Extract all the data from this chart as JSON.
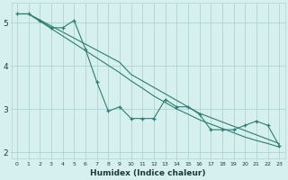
{
  "xlabel": "Humidex (Indice chaleur)",
  "bg_color": "#d6f0f0",
  "grid_color": "#aed4d4",
  "line_color": "#2e7d72",
  "xlim": [
    -0.5,
    23.5
  ],
  "ylim": [
    1.85,
    5.45
  ],
  "yticks": [
    2,
    3,
    4,
    5
  ],
  "xticks": [
    0,
    1,
    2,
    3,
    4,
    5,
    6,
    7,
    8,
    9,
    10,
    11,
    12,
    13,
    14,
    15,
    16,
    17,
    18,
    19,
    20,
    21,
    22,
    23
  ],
  "series": [
    {
      "x": [
        0,
        1,
        2,
        3,
        4,
        5,
        6,
        7,
        8,
        9,
        10,
        11,
        12,
        13,
        14,
        15,
        16,
        17,
        18,
        19,
        20,
        21,
        22,
        23
      ],
      "y": [
        5.2,
        5.2,
        5.05,
        4.88,
        4.88,
        5.05,
        4.38,
        3.62,
        2.95,
        3.05,
        2.78,
        2.78,
        2.78,
        3.22,
        3.05,
        3.05,
        2.88,
        2.52,
        2.52,
        2.52,
        2.62,
        2.72,
        2.62,
        2.15
      ],
      "marker": "+"
    },
    {
      "x": [
        0,
        1,
        2,
        3,
        4,
        5,
        6,
        7,
        8,
        9,
        10,
        11,
        12,
        13,
        14,
        15,
        16,
        17,
        18,
        19,
        20,
        21,
        22,
        23
      ],
      "y": [
        5.2,
        5.2,
        5.06,
        4.92,
        4.78,
        4.64,
        4.5,
        4.36,
        4.22,
        4.08,
        3.8,
        3.65,
        3.5,
        3.35,
        3.2,
        3.05,
        2.9,
        2.8,
        2.7,
        2.6,
        2.5,
        2.4,
        2.3,
        2.2
      ],
      "marker": null
    },
    {
      "x": [
        0,
        1,
        2,
        3,
        4,
        5,
        6,
        7,
        8,
        9,
        10,
        11,
        12,
        13,
        14,
        15,
        16,
        17,
        18,
        19,
        20,
        21,
        22,
        23
      ],
      "y": [
        5.2,
        5.2,
        5.03,
        4.86,
        4.69,
        4.52,
        4.35,
        4.18,
        4.01,
        3.84,
        3.65,
        3.48,
        3.3,
        3.15,
        3.0,
        2.88,
        2.75,
        2.65,
        2.55,
        2.45,
        2.35,
        2.27,
        2.2,
        2.12
      ],
      "marker": null
    }
  ]
}
